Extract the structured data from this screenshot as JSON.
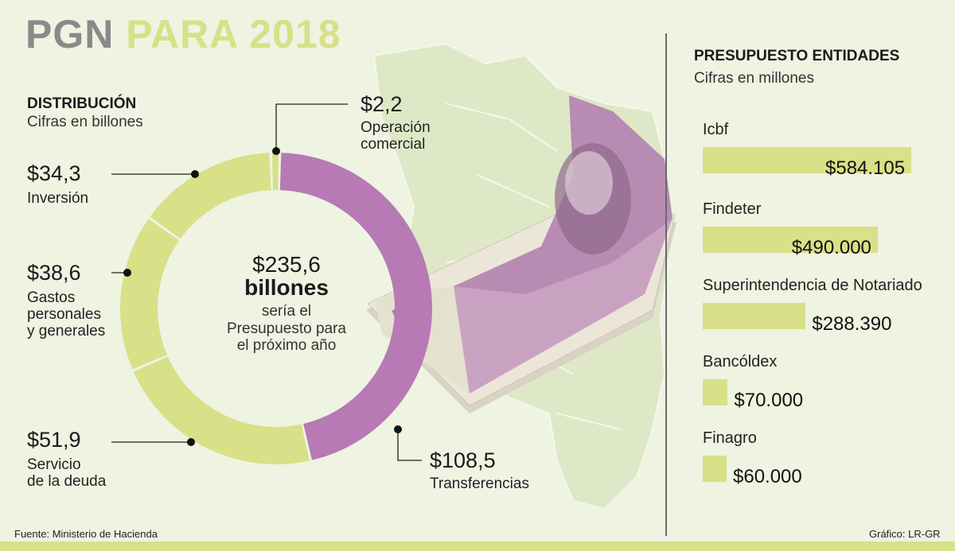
{
  "title": {
    "part1": "PGN",
    "part2": "PARA 2018"
  },
  "distribution": {
    "heading": "DISTRIBUCIÓN",
    "subheading": "Cifras en billones"
  },
  "center": {
    "value": "$235,6",
    "unit": "billones",
    "desc_line1": "sería el",
    "desc_line2": "Presupuesto para",
    "desc_line3": "el próximo año"
  },
  "chart_data": [
    {
      "type": "pie",
      "variant": "donut",
      "total": 235.6,
      "categories": [
        "Operación comercial",
        "Transferencias",
        "Servicio de la deuda",
        "Gastos personales y generales",
        "Inversión"
      ],
      "values": [
        2.2,
        108.5,
        51.9,
        38.6,
        34.3
      ],
      "value_labels": [
        "$2,2",
        "$108,5",
        "$51,9",
        "$38,6",
        "$34,3"
      ],
      "label_lines": [
        [
          "Operación",
          "comercial"
        ],
        [
          "Transferencias"
        ],
        [
          "Servicio",
          "de la deuda"
        ],
        [
          "Gastos",
          "personales",
          "y generales"
        ],
        [
          "Inversión"
        ]
      ],
      "colors": [
        "#d8e088",
        "#b77ab5",
        "#d8e088",
        "#d8e088",
        "#d8e088"
      ]
    },
    {
      "type": "bar",
      "orientation": "horizontal",
      "title": "PRESUPUESTO ENTIDADES",
      "subtitle": "Cifras en millones",
      "categories": [
        "Icbf",
        "Findeter",
        "Superintendencia de Notariado",
        "Bancóldex",
        "Finagro"
      ],
      "values": [
        584105,
        490000,
        288390,
        70000,
        60000
      ],
      "value_labels": [
        "$584.105",
        "$490.000",
        "$288.390",
        "$70.000",
        "$60.000"
      ],
      "color": "#d8e088"
    }
  ],
  "footer": {
    "source": "Fuente: Ministerio de Hacienda",
    "credit": "Gráfico: LR-GR"
  },
  "colors": {
    "accent_green": "#d8e088",
    "accent_purple": "#b77ab5",
    "title_gray": "#8a8a8a",
    "background": "#eef3e2"
  }
}
